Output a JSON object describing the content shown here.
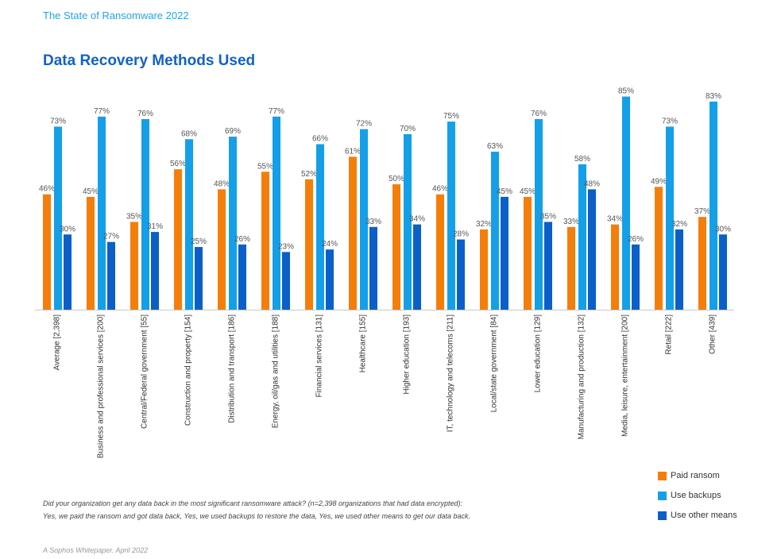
{
  "header": {
    "title": "The State of Ransomware 2022"
  },
  "chart_title": "Data Recovery Methods Used",
  "legend": [
    {
      "label": "Paid ransom",
      "color": "#f57e0a"
    },
    {
      "label": "Use backups",
      "color": "#13a0e8"
    },
    {
      "label": "Use other means",
      "color": "#0b5fc8"
    }
  ],
  "footnote": {
    "line1": "Did your organization get any data back in the most significant ransomware attack? (n=2,398 organizations that had data encrypted):",
    "line2": "Yes, we paid the ransom and got data back, Yes, we used backups to restore the data, Yes, we used other means to get our data back."
  },
  "footer": "A Sophos Whitepaper. April 2022",
  "chart_data": {
    "type": "bar",
    "title": "Data Recovery Methods Used",
    "ylim": [
      0,
      100
    ],
    "grid": false,
    "legend_position": "bottom-right",
    "categories": [
      "Average [2,398]",
      "Business and professional services [200]",
      "Central/Federal government [55]",
      "Construction and property [154]",
      "Distribution and transport [186]",
      "Energy, oil/gas and utilities [188]",
      "Financial services [131]",
      "Healthcare [155]",
      "Higher education [193]",
      "IT, technology and telecoms [211]",
      "Local/state government [84]",
      "Lower education [129]",
      "Manufacturing and production [132]",
      "Media, leisure, entertainment [200]",
      "Retail [222]",
      "Other [439]"
    ],
    "series": [
      {
        "name": "Paid ransom",
        "color": "#f57e0a",
        "values": [
          46,
          45,
          35,
          56,
          48,
          55,
          52,
          61,
          50,
          46,
          32,
          45,
          33,
          34,
          49,
          37
        ]
      },
      {
        "name": "Use backups",
        "color": "#13a0e8",
        "values": [
          73,
          77,
          76,
          68,
          69,
          77,
          66,
          72,
          70,
          75,
          63,
          76,
          58,
          85,
          73,
          83
        ]
      },
      {
        "name": "Use other means",
        "color": "#0b5fc8",
        "values": [
          30,
          27,
          31,
          25,
          26,
          23,
          24,
          33,
          34,
          28,
          45,
          35,
          48,
          26,
          32,
          30
        ]
      }
    ],
    "value_suffix": "%"
  }
}
